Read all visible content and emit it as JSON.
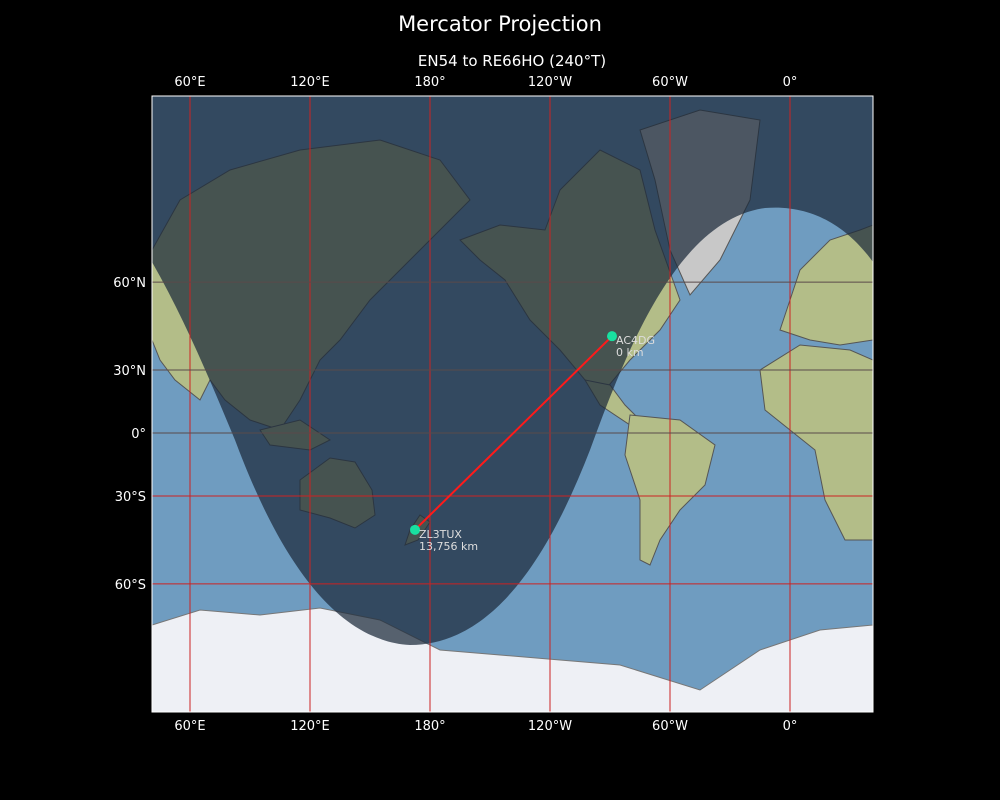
{
  "title": "Mercator Projection",
  "subtitle": "EN54 to RE66HO (240°T)",
  "colors": {
    "ocean": "#6f9cc0",
    "land": "#b9c28e",
    "ice": "#eef0f5",
    "night": "#1c2a3a",
    "grid_red": "#cc2222",
    "path": "#ff1a1a",
    "marker": "#19e0a0"
  },
  "map": {
    "projection": "Mercator",
    "lon_ticks": [
      "60°E",
      "120°E",
      "180°",
      "120°W",
      "60°W",
      "0°"
    ],
    "lat_ticks": [
      "60°N",
      "30°N",
      "0°",
      "30°S",
      "60°S"
    ],
    "stations": [
      {
        "call": "AC4DG",
        "distance": "0 km",
        "lat": 43.5,
        "lon": -89
      },
      {
        "call": "ZL3TUX",
        "distance": "13,756 km",
        "lat": -43.5,
        "lon": 172.5
      }
    ],
    "day_night_terminator": true
  }
}
